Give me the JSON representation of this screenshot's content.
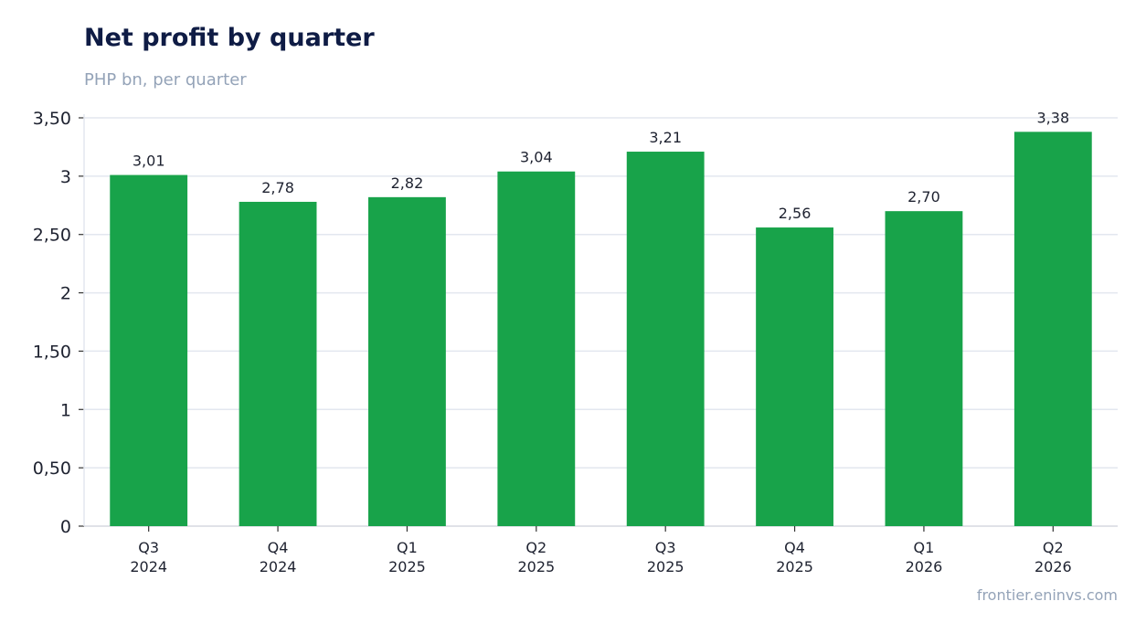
{
  "chart_data": {
    "type": "bar",
    "title": "Net profit by quarter",
    "subtitle": "PHP bn, per quarter",
    "source": "frontier.eninvs.com",
    "categories": [
      [
        "Q3",
        "2024"
      ],
      [
        "Q4",
        "2024"
      ],
      [
        "Q1",
        "2025"
      ],
      [
        "Q2",
        "2025"
      ],
      [
        "Q3",
        "2025"
      ],
      [
        "Q4",
        "2025"
      ],
      [
        "Q1",
        "2026"
      ],
      [
        "Q2",
        "2026"
      ]
    ],
    "values": [
      3.01,
      2.78,
      2.82,
      3.04,
      3.21,
      2.56,
      2.7,
      3.38
    ],
    "value_labels": [
      "3,01",
      "2,78",
      "2,82",
      "3,04",
      "3,21",
      "2,56",
      "2,70",
      "3,38"
    ],
    "ylim": [
      0,
      3.5
    ],
    "yticks": [
      0,
      0.5,
      1,
      1.5,
      2,
      2.5,
      3,
      3.5
    ],
    "ytick_labels": [
      "0",
      "0,50",
      "1",
      "1,50",
      "2",
      "2,50",
      "3",
      "3,50"
    ],
    "grid": true,
    "bar_color": "#18a34a"
  }
}
